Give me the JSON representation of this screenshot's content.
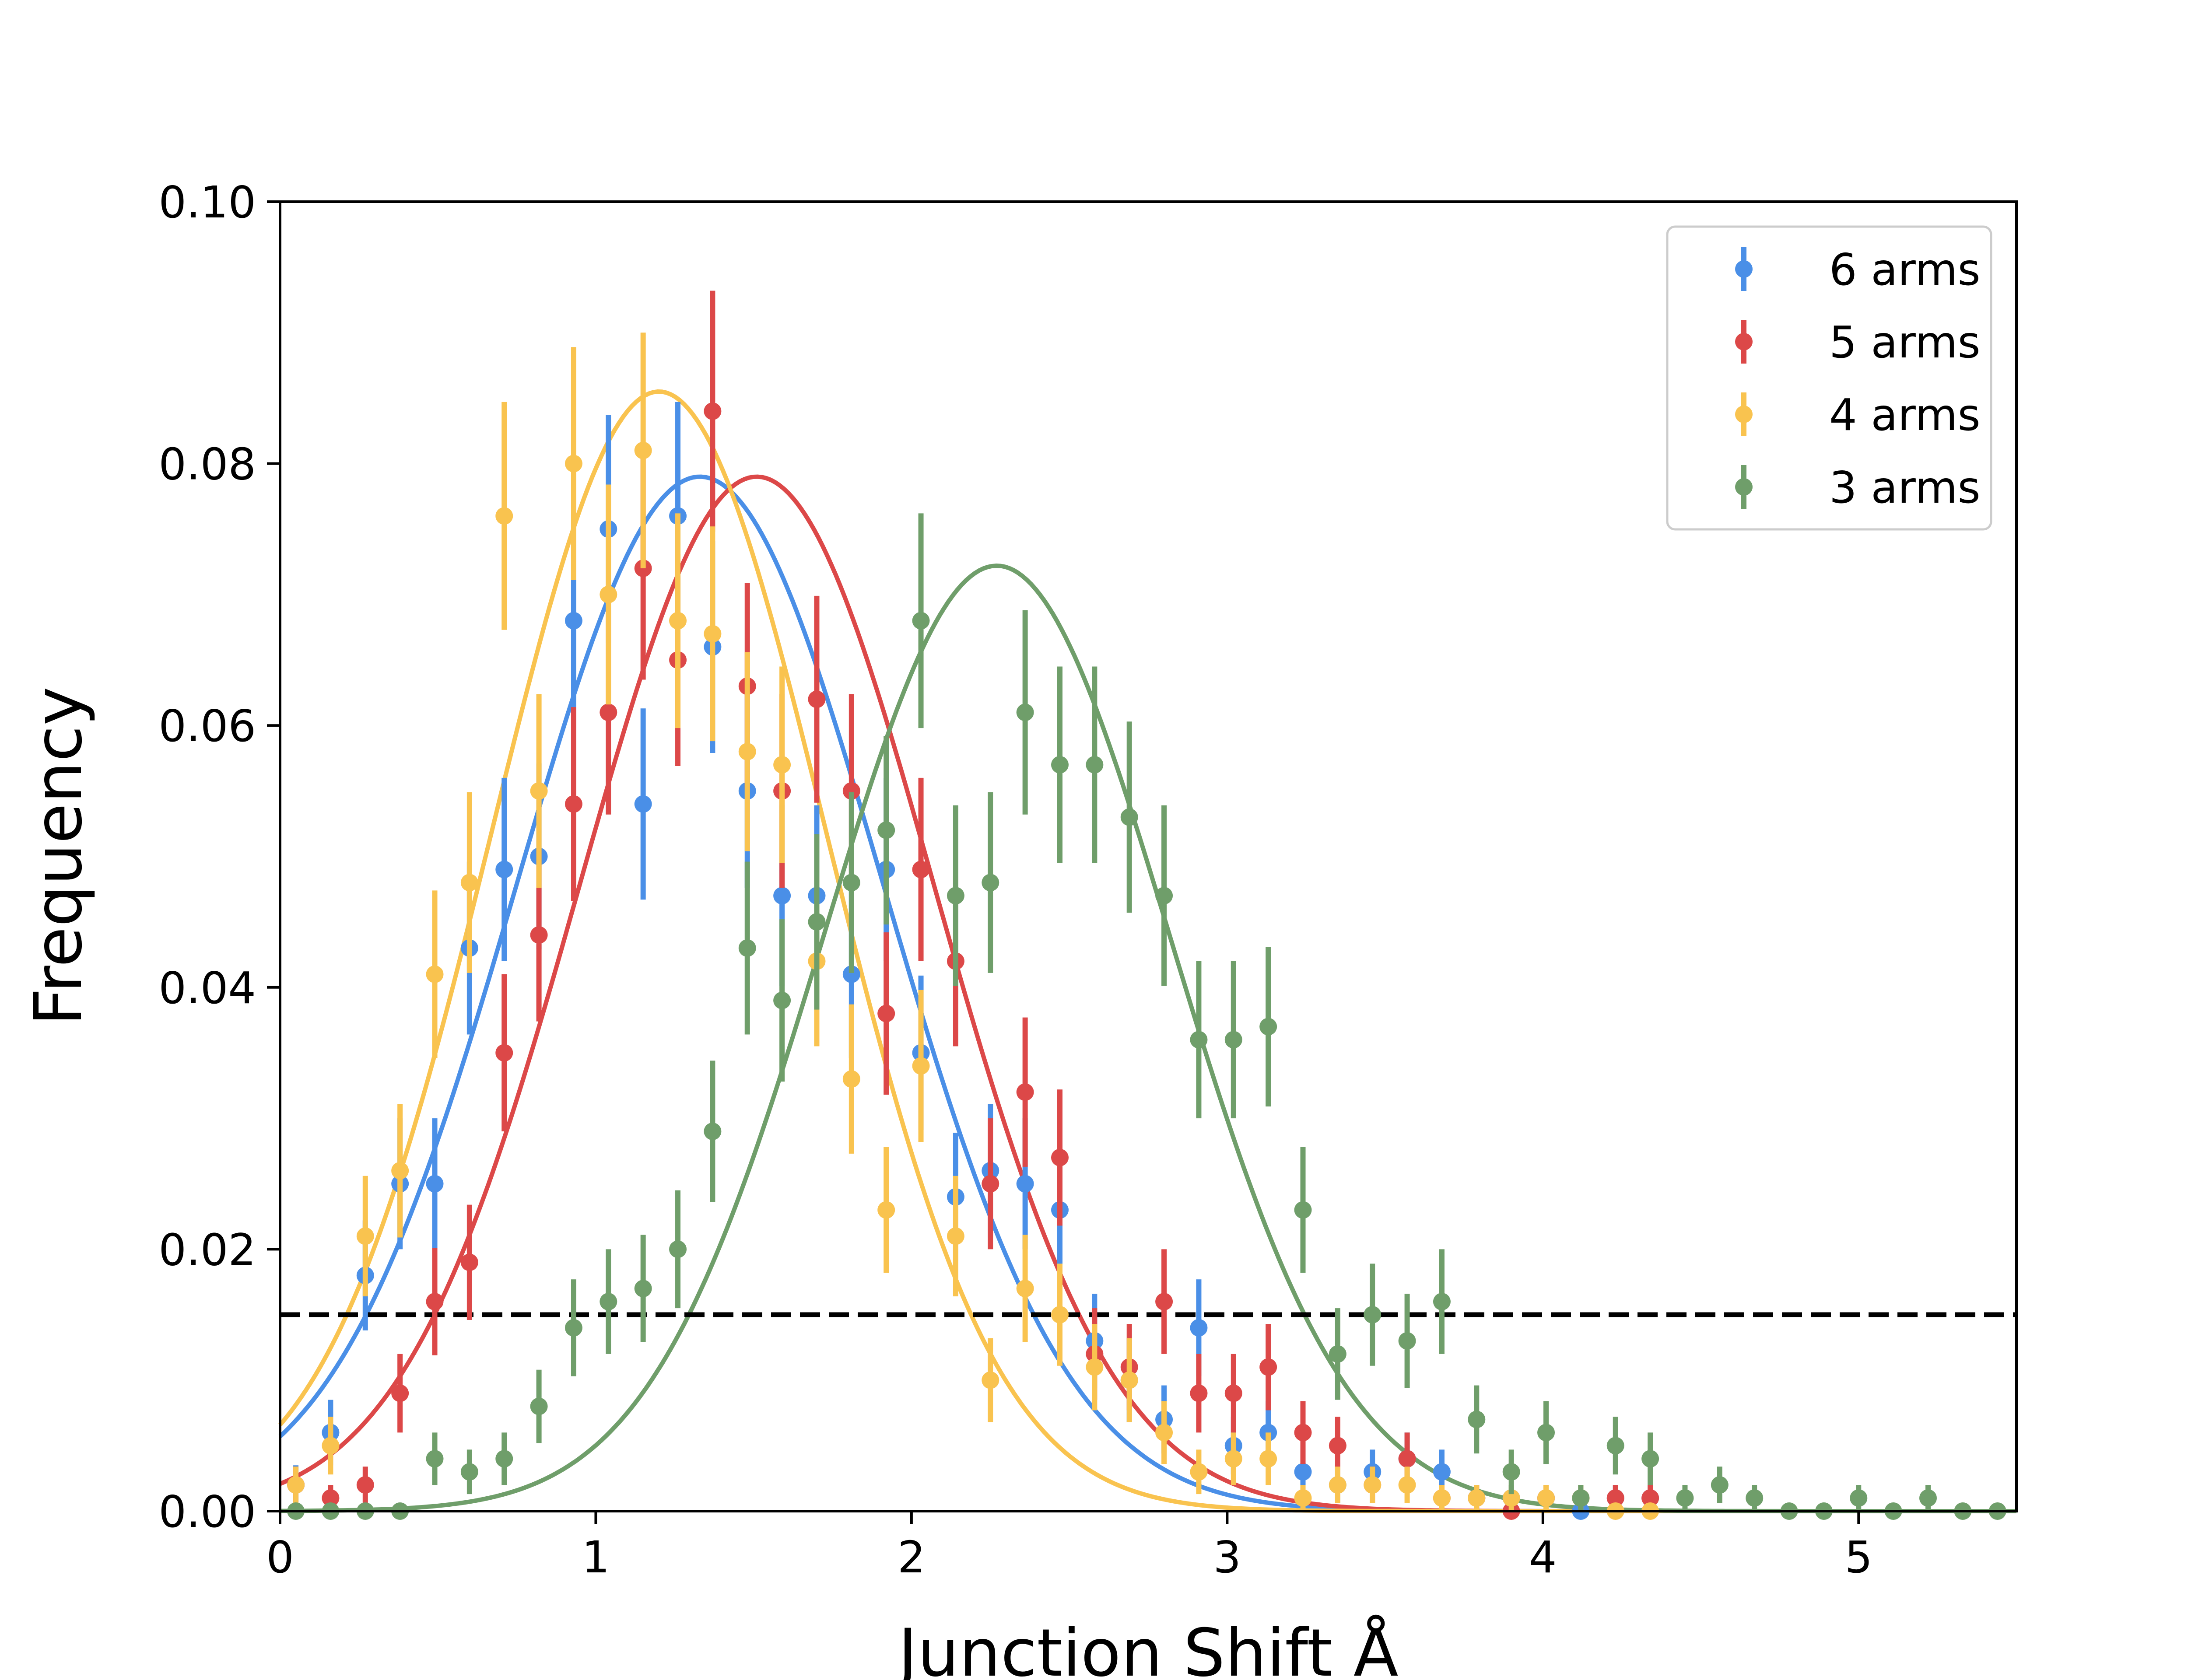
{
  "chart_data": {
    "type": "scatter",
    "xlabel": "Junction Shift  Å",
    "ylabel": "Frequency",
    "xlim": [
      0,
      5.5
    ],
    "ylim": [
      0,
      0.1
    ],
    "xticks": [
      0,
      1,
      2,
      3,
      4,
      5
    ],
    "xtick_labels": [
      "0",
      "1",
      "2",
      "3",
      "4",
      "5"
    ],
    "yticks": [
      0,
      0.02,
      0.04,
      0.06,
      0.08,
      0.1
    ],
    "ytick_labels": [
      "0.00",
      "0.02",
      "0.04",
      "0.06",
      "0.08",
      "0.10"
    ],
    "grid": false,
    "legend_position": "top-right",
    "threshold_line": {
      "y": 0.015,
      "style": "dashed",
      "color": "#000000"
    },
    "series": [
      {
        "name": "6 arms",
        "color": "#4a8fe7",
        "fit": {
          "type": "gaussian",
          "amplitude": 0.079,
          "mean": 1.33,
          "sigma": 0.58
        },
        "x": [
          0.05,
          0.16,
          0.27,
          0.38,
          0.49,
          0.6,
          0.71,
          0.82,
          0.93,
          1.04,
          1.15,
          1.26,
          1.37,
          1.48,
          1.59,
          1.7,
          1.81,
          1.92,
          2.03,
          2.14,
          2.25,
          2.36,
          2.47,
          2.58,
          2.69,
          2.8,
          2.91,
          3.02,
          3.13,
          3.24,
          3.35,
          3.46,
          3.57,
          3.68,
          3.79,
          3.9,
          4.01,
          4.12,
          4.23,
          4.34
        ],
        "y": [
          0.002,
          0.006,
          0.018,
          0.025,
          0.025,
          0.043,
          0.049,
          0.05,
          0.068,
          0.075,
          0.054,
          0.076,
          0.066,
          0.055,
          0.047,
          0.047,
          0.041,
          0.049,
          0.035,
          0.024,
          0.026,
          0.025,
          0.023,
          0.013,
          0.01,
          0.007,
          0.014,
          0.005,
          0.006,
          0.003,
          0.002,
          0.003,
          0.004,
          0.003,
          0.001,
          0.001,
          0.001,
          0.0,
          0.001,
          0.001
        ],
        "err": [
          0.0015,
          0.0025,
          0.0042,
          0.005,
          0.005,
          0.0066,
          0.007,
          0.0071,
          0.0082,
          0.0087,
          0.0073,
          0.0087,
          0.0081,
          0.0074,
          0.0069,
          0.0069,
          0.0064,
          0.007,
          0.0059,
          0.0049,
          0.0051,
          0.005,
          0.0048,
          0.0036,
          0.0032,
          0.0026,
          0.0037,
          0.0022,
          0.0024,
          0.0017,
          0.0014,
          0.0017,
          0.002,
          0.0017,
          0.001,
          0.001,
          0.001,
          0.0,
          0.001,
          0.001
        ]
      },
      {
        "name": "5 arms",
        "color": "#dc4848",
        "fit": {
          "type": "gaussian",
          "amplitude": 0.079,
          "mean": 1.51,
          "sigma": 0.56
        },
        "x": [
          0.05,
          0.16,
          0.27,
          0.38,
          0.49,
          0.6,
          0.71,
          0.82,
          0.93,
          1.04,
          1.15,
          1.26,
          1.37,
          1.48,
          1.59,
          1.7,
          1.81,
          1.92,
          2.03,
          2.14,
          2.25,
          2.36,
          2.47,
          2.58,
          2.69,
          2.8,
          2.91,
          3.02,
          3.13,
          3.24,
          3.35,
          3.46,
          3.57,
          3.68,
          3.79,
          3.9,
          4.01,
          4.12,
          4.23,
          4.34
        ],
        "y": [
          0.002,
          0.001,
          0.002,
          0.009,
          0.016,
          0.019,
          0.035,
          0.044,
          0.054,
          0.061,
          0.072,
          0.065,
          0.084,
          0.063,
          0.055,
          0.062,
          0.055,
          0.038,
          0.049,
          0.042,
          0.025,
          0.032,
          0.027,
          0.012,
          0.011,
          0.016,
          0.009,
          0.009,
          0.011,
          0.006,
          0.005,
          0.002,
          0.004,
          0.001,
          0.001,
          0.0,
          0.001,
          0.001,
          0.001,
          0.001
        ],
        "err": [
          0.0014,
          0.001,
          0.0014,
          0.003,
          0.0041,
          0.0044,
          0.006,
          0.0066,
          0.0074,
          0.0078,
          0.0085,
          0.0081,
          0.0092,
          0.0079,
          0.0074,
          0.0079,
          0.0074,
          0.0062,
          0.007,
          0.0065,
          0.005,
          0.0057,
          0.0052,
          0.0035,
          0.0033,
          0.004,
          0.003,
          0.003,
          0.0033,
          0.0024,
          0.0022,
          0.0014,
          0.002,
          0.001,
          0.001,
          0.0,
          0.001,
          0.001,
          0.001,
          0.001
        ]
      },
      {
        "name": "4 arms",
        "color": "#f9c34f",
        "fit": {
          "type": "gaussian",
          "amplitude": 0.0855,
          "mean": 1.2,
          "sigma": 0.53
        },
        "x": [
          0.05,
          0.16,
          0.27,
          0.38,
          0.49,
          0.6,
          0.71,
          0.82,
          0.93,
          1.04,
          1.15,
          1.26,
          1.37,
          1.48,
          1.59,
          1.7,
          1.81,
          1.92,
          2.03,
          2.14,
          2.25,
          2.36,
          2.47,
          2.58,
          2.69,
          2.8,
          2.91,
          3.02,
          3.13,
          3.24,
          3.35,
          3.46,
          3.57,
          3.68,
          3.79,
          3.9,
          4.01,
          4.12,
          4.23,
          4.34
        ],
        "y": [
          0.002,
          0.005,
          0.021,
          0.026,
          0.041,
          0.048,
          0.076,
          0.055,
          0.08,
          0.07,
          0.081,
          0.068,
          0.067,
          0.058,
          0.057,
          0.042,
          0.033,
          0.023,
          0.034,
          0.021,
          0.01,
          0.017,
          0.015,
          0.011,
          0.01,
          0.006,
          0.003,
          0.004,
          0.004,
          0.001,
          0.002,
          0.002,
          0.002,
          0.001,
          0.001,
          0.001,
          0.001,
          0.001,
          0.0,
          0.0
        ],
        "err": [
          0.0014,
          0.0022,
          0.0046,
          0.0051,
          0.0064,
          0.0069,
          0.0087,
          0.0074,
          0.0089,
          0.0084,
          0.009,
          0.0082,
          0.0082,
          0.0076,
          0.0075,
          0.0065,
          0.0057,
          0.0048,
          0.0058,
          0.0046,
          0.0032,
          0.0041,
          0.0039,
          0.0033,
          0.0032,
          0.0024,
          0.0017,
          0.002,
          0.002,
          0.001,
          0.0014,
          0.0014,
          0.0014,
          0.001,
          0.001,
          0.001,
          0.001,
          0.001,
          0.0,
          0.0
        ]
      },
      {
        "name": "3 arms",
        "color": "#6f9e6a",
        "fit": {
          "type": "gaussian",
          "amplitude": 0.0722,
          "mean": 2.27,
          "sigma": 0.55
        },
        "x": [
          0.05,
          0.16,
          0.27,
          0.38,
          0.49,
          0.6,
          0.71,
          0.82,
          0.93,
          1.04,
          1.15,
          1.26,
          1.37,
          1.48,
          1.59,
          1.7,
          1.81,
          1.92,
          2.03,
          2.14,
          2.25,
          2.36,
          2.47,
          2.58,
          2.69,
          2.8,
          2.91,
          3.02,
          3.13,
          3.24,
          3.35,
          3.46,
          3.57,
          3.68,
          3.79,
          3.9,
          4.01,
          4.12,
          4.23,
          4.34,
          4.45,
          4.56,
          4.67,
          4.78,
          4.89,
          5.0,
          5.11,
          5.22,
          5.33,
          5.44
        ],
        "y": [
          0.0,
          0.0,
          0.0,
          0.0,
          0.004,
          0.003,
          0.004,
          0.008,
          0.014,
          0.016,
          0.017,
          0.02,
          0.029,
          0.043,
          0.039,
          0.045,
          0.048,
          0.052,
          0.068,
          0.047,
          0.048,
          0.061,
          0.057,
          0.057,
          0.053,
          0.047,
          0.036,
          0.036,
          0.037,
          0.023,
          0.012,
          0.015,
          0.013,
          0.016,
          0.007,
          0.003,
          0.006,
          0.001,
          0.005,
          0.004,
          0.001,
          0.002,
          0.001,
          0.0,
          0.0,
          0.001,
          0.0,
          0.001,
          0.0,
          0.0
        ],
        "err": [
          0.0,
          0.0,
          0.0,
          0.0,
          0.002,
          0.0017,
          0.002,
          0.0028,
          0.0037,
          0.004,
          0.0041,
          0.0045,
          0.0054,
          0.0066,
          0.0062,
          0.0067,
          0.0069,
          0.0072,
          0.0082,
          0.0069,
          0.0069,
          0.0078,
          0.0075,
          0.0075,
          0.0073,
          0.0069,
          0.006,
          0.006,
          0.0061,
          0.0048,
          0.0035,
          0.0039,
          0.0036,
          0.004,
          0.0026,
          0.0017,
          0.0024,
          0.001,
          0.0022,
          0.002,
          0.001,
          0.0014,
          0.001,
          0.0,
          0.0,
          0.001,
          0.0,
          0.001,
          0.0,
          0.0
        ]
      }
    ]
  }
}
